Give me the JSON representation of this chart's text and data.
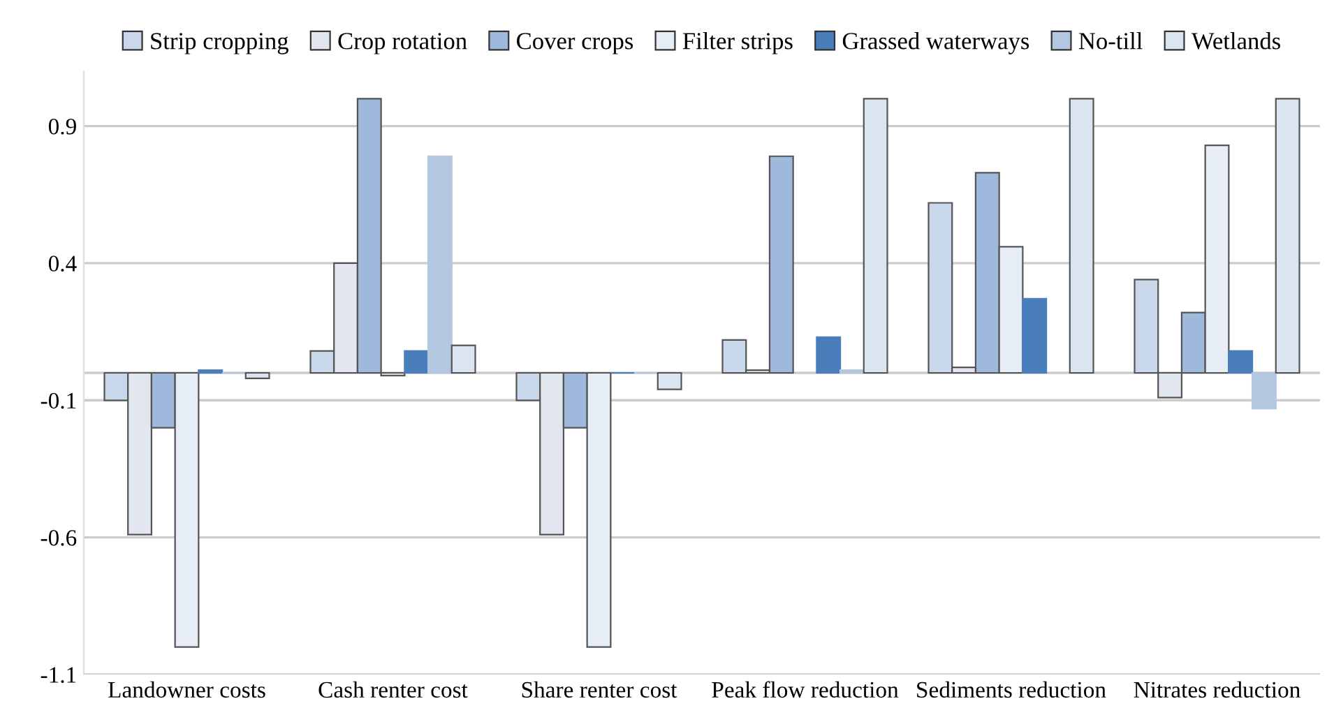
{
  "chart_data": {
    "type": "bar",
    "categories": [
      "Landowner costs",
      "Cash renter cost",
      "Share renter cost",
      "Peak flow reduction",
      "Sediments reduction",
      "Nitrates reduction"
    ],
    "series": [
      {
        "name": "Strip cropping",
        "color": "#c9d7ea",
        "values": [
          -0.1,
          0.08,
          -0.1,
          0.12,
          0.62,
          0.34
        ]
      },
      {
        "name": "Crop rotation",
        "color": "#e2e7ef",
        "values": [
          -0.59,
          0.4,
          -0.59,
          0.01,
          0.02,
          -0.09
        ]
      },
      {
        "name": "Cover crops",
        "color": "#9fb9dd",
        "values": [
          -0.2,
          1.0,
          -0.2,
          0.79,
          0.73,
          0.22
        ]
      },
      {
        "name": "Filter strips",
        "color": "#e6edf6",
        "values": [
          -1.0,
          -0.01,
          -1.0,
          null,
          0.46,
          0.83
        ]
      },
      {
        "name": "Grassed waterways",
        "color": "#4a7ebb",
        "values": [
          0.01,
          0.08,
          0.0,
          0.13,
          0.27,
          0.08
        ]
      },
      {
        "name": "No-till",
        "color": "#b4c7e1",
        "values": [
          0.0,
          0.79,
          0.0,
          0.01,
          null,
          -0.13
        ]
      },
      {
        "name": "Wetlands",
        "color": "#dbe4f1",
        "values": [
          -0.02,
          0.1,
          -0.06,
          1.0,
          1.0,
          1.0
        ]
      }
    ],
    "ylim": [
      -1.1,
      1.1
    ],
    "yticks": [
      -1.1,
      -0.6,
      -0.1,
      0.4,
      0.9
    ],
    "grid": "y",
    "legend": "top"
  }
}
